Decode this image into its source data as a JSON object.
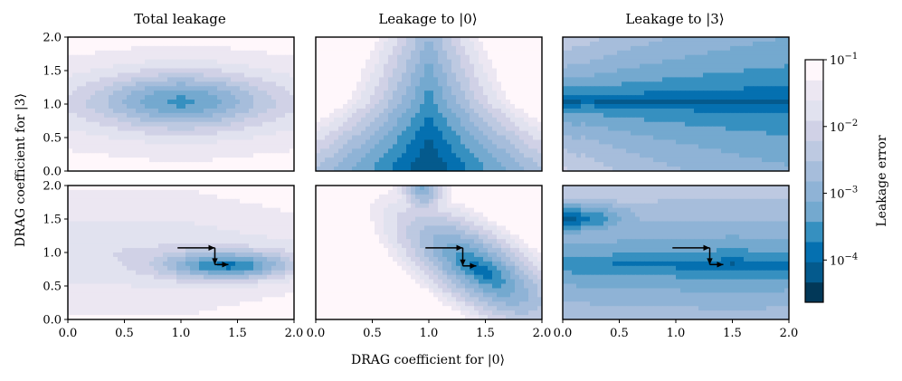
{
  "chart_data": {
    "type": "contour",
    "column_titles": [
      "Total leakage",
      "Leakage to |0⟩",
      "Leakage to |3⟩"
    ],
    "xlabel": "DRAG coefficient for |0⟩",
    "ylabel": "DRAG coefficient for |3⟩",
    "xlim": [
      0.0,
      2.0
    ],
    "ylim": [
      0.0,
      2.0
    ],
    "x_ticks": [
      "0.0",
      "0.5",
      "1.0",
      "1.5",
      "2.0"
    ],
    "y_ticks": [
      "0.0",
      "0.5",
      "1.0",
      "1.5",
      "2.0"
    ],
    "colorbar": {
      "label": "Leakage error",
      "scale": "log",
      "range": [
        2.33e-05,
        0.1
      ],
      "ticks": [
        {
          "value": 0.1,
          "base": "10",
          "exp": "−1"
        },
        {
          "value": 0.01,
          "base": "10",
          "exp": "−2"
        },
        {
          "value": 0.001,
          "base": "10",
          "exp": "−3"
        },
        {
          "value": 0.0001,
          "base": "10",
          "exp": "−4"
        }
      ],
      "colors": [
        "#023858",
        "#045a8d",
        "#0570b0",
        "#3690c0",
        "#74a9cf",
        "#8fb3d6",
        "#a6bddb",
        "#bdc9e1",
        "#d0d1e6",
        "#e1e2ef",
        "#ece7f2",
        "#fff7fb"
      ]
    },
    "panels": [
      {
        "row": 0,
        "col": 0,
        "name": "total-leakage-fixed",
        "sources": [
          {
            "x": 1.0,
            "y": 1.05,
            "sx": 0.75,
            "sy": 0.42,
            "depth": 5.5
          }
        ],
        "base": 1.8,
        "skew": 0.0,
        "path": []
      },
      {
        "row": 0,
        "col": 1,
        "name": "leakage-to-0-fixed",
        "sources": [],
        "base": 0,
        "skew": 0,
        "path": []
      },
      {
        "row": 0,
        "col": 2,
        "name": "leakage-to-3-fixed",
        "sources": [],
        "base": 0,
        "skew": 0,
        "path": []
      },
      {
        "row": 1,
        "col": 0,
        "name": "total-leakage-optimized",
        "sources": [
          {
            "x": 1.42,
            "y": 0.8,
            "sx": 0.55,
            "sy": 0.2,
            "depth": 7.0
          }
        ],
        "base": 2.0,
        "skew": -0.35,
        "path": [
          [
            0.97,
            1.07
          ],
          [
            1.3,
            1.07
          ],
          [
            1.3,
            0.82
          ],
          [
            1.42,
            0.82
          ]
        ]
      },
      {
        "row": 1,
        "col": 1,
        "name": "leakage-to-0-optimized",
        "sources": [
          {
            "x": 1.45,
            "y": 0.75,
            "sx": 0.35,
            "sy": 0.35,
            "depth": 6.0
          }
        ],
        "base": 2.0,
        "skew": -1.0,
        "path": [
          [
            0.97,
            1.07
          ],
          [
            1.3,
            1.07
          ],
          [
            1.3,
            0.8
          ],
          [
            1.42,
            0.8
          ]
        ]
      },
      {
        "row": 1,
        "col": 2,
        "name": "leakage-to-3-optimized",
        "sources": [
          {
            "x": 0.05,
            "y": 1.5,
            "sx": 0.3,
            "sy": 0.12,
            "depth": 7.0
          },
          {
            "x": 1.5,
            "y": 0.82,
            "sx": 0.6,
            "sy": 0.08,
            "depth": 6.5
          }
        ],
        "base": 2.2,
        "skew": 0.0,
        "path": [
          [
            0.97,
            1.07
          ],
          [
            1.3,
            1.07
          ],
          [
            1.3,
            0.82
          ],
          [
            1.42,
            0.82
          ]
        ]
      }
    ]
  }
}
